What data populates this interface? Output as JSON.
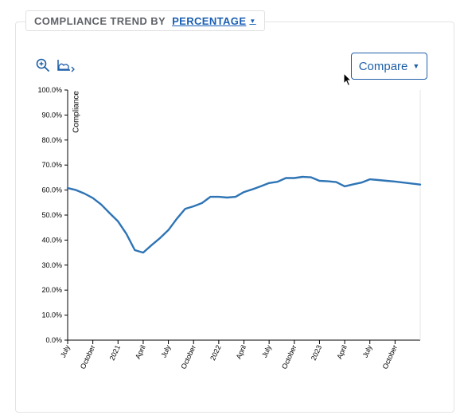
{
  "header": {
    "title": "COMPLIANCE TREND BY",
    "metric_label": "PERCENTAGE"
  },
  "toolbar": {
    "zoom_icon": "zoom-in-icon",
    "chart_type_icon": "area-chart-icon",
    "compare_label": "Compare"
  },
  "colors": {
    "accent": "#1f5fa8",
    "line": "#2e74b5"
  },
  "chart_data": {
    "type": "line",
    "ylabel": "Compliance",
    "ylim": [
      0,
      100
    ],
    "y_ticks": [
      "0.0%",
      "10.0%",
      "20.0%",
      "30.0%",
      "40.0%",
      "50.0%",
      "60.0%",
      "70.0%",
      "80.0%",
      "90.0%",
      "100.0%"
    ],
    "x_tick_labels": [
      "July",
      "October",
      "2021",
      "April",
      "July",
      "October",
      "2022",
      "April",
      "July",
      "October",
      "2023",
      "April",
      "July",
      "October"
    ],
    "x_ticks": [
      "2020-07",
      "2020-10",
      "2021-01",
      "2021-04",
      "2021-07",
      "2021-10",
      "2022-01",
      "2022-04",
      "2022-07",
      "2022-10",
      "2023-01",
      "2023-04",
      "2023-07",
      "2023-10"
    ],
    "xlim": [
      "2020-07",
      "2024-01"
    ],
    "grid": false,
    "series": [
      {
        "x": [
          "2020-07",
          "2020-08",
          "2020-09",
          "2020-10",
          "2020-11",
          "2020-12",
          "2021-01",
          "2021-02",
          "2021-03",
          "2021-04",
          "2021-05",
          "2021-06",
          "2021-07",
          "2021-08",
          "2021-09",
          "2021-10",
          "2021-11",
          "2021-12",
          "2022-01",
          "2022-02",
          "2022-03",
          "2022-04",
          "2022-05",
          "2022-06",
          "2022-07",
          "2022-08",
          "2022-09",
          "2022-10",
          "2022-11",
          "2022-12",
          "2023-01",
          "2023-02",
          "2023-03",
          "2023-04",
          "2023-05",
          "2023-06",
          "2023-07",
          "2023-08",
          "2023-09",
          "2023-10",
          "2023-11",
          "2023-12",
          "2024-01"
        ],
        "values": [
          60.8,
          60.0,
          58.6,
          56.8,
          54.2,
          50.8,
          47.5,
          42.5,
          36.0,
          35.0,
          38.0,
          40.8,
          44.0,
          48.5,
          52.5,
          53.5,
          54.8,
          57.3,
          57.3,
          57.0,
          57.3,
          59.2,
          60.3,
          61.5,
          62.8,
          63.3,
          64.8,
          64.8,
          65.3,
          65.1,
          63.7,
          63.5,
          63.2,
          61.5,
          62.3,
          63.0,
          64.3,
          64.0,
          63.7,
          63.4,
          63.0,
          62.6,
          62.2
        ]
      }
    ]
  }
}
